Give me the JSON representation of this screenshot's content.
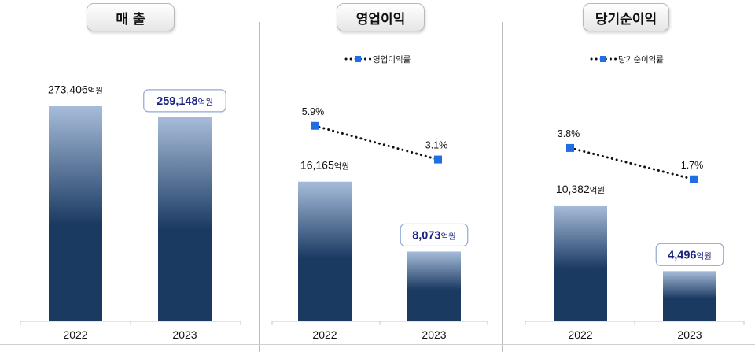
{
  "panels": [
    {
      "title": "매 출"
    },
    {
      "title": "영업이익"
    },
    {
      "title": "당기순이익"
    }
  ],
  "unit": "억원",
  "colors": {
    "bar_top": "#a7bcda",
    "bar_bottom": "#1b3a62",
    "line_marker": "#1f6fe0",
    "highlight_text": "#1a237e",
    "highlight_border": "#8fa9d2"
  },
  "chart_data": [
    {
      "type": "bar",
      "title": "매 출",
      "categories": [
        "2022",
        "2023"
      ],
      "series": [
        {
          "values": [
            273406,
            259148
          ],
          "labels": [
            "273,406",
            "259,148"
          ]
        }
      ],
      "highlight_index": 1,
      "ylim": [
        0,
        340000
      ]
    },
    {
      "type": "bar",
      "title": "영업이익",
      "categories": [
        "2022",
        "2023"
      ],
      "series": [
        {
          "values": [
            16165,
            8073
          ],
          "labels": [
            "16,165",
            "8,073"
          ]
        }
      ],
      "highlight_index": 1,
      "ylim": [
        0,
        31000
      ],
      "line_series": {
        "name": "영업이익률",
        "values": [
          5.9,
          3.1
        ],
        "labels": [
          "5.9%",
          "3.1%"
        ],
        "ylim": [
          0,
          8.5
        ]
      },
      "legend_position": "top-center"
    },
    {
      "type": "bar",
      "title": "당기순이익",
      "categories": [
        "2022",
        "2023"
      ],
      "series": [
        {
          "values": [
            10382,
            4496
          ],
          "labels": [
            "10,382",
            "4,496"
          ]
        }
      ],
      "highlight_index": 1,
      "ylim": [
        0,
        24000
      ],
      "line_series": {
        "name": "당기순이익률",
        "values": [
          3.8,
          1.7
        ],
        "labels": [
          "3.8%",
          "1.7%"
        ],
        "ylim": [
          0,
          5.8
        ]
      },
      "legend_position": "top-center"
    }
  ]
}
